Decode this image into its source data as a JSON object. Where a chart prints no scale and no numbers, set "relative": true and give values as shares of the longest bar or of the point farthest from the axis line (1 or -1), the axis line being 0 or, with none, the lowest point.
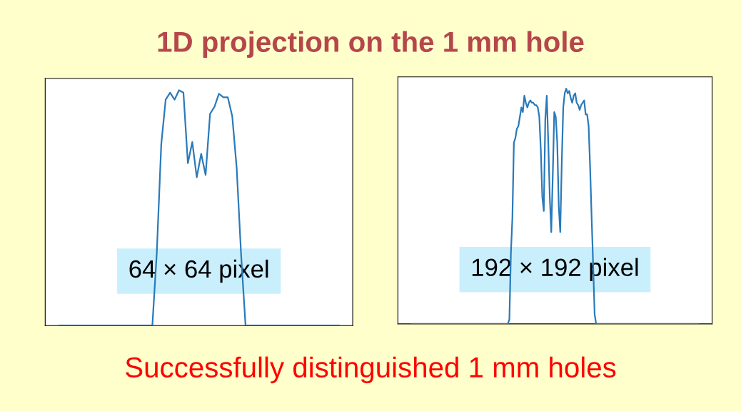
{
  "chart_data": [
    {
      "type": "line",
      "title": "1D projection on the 1 mm hole",
      "relative": true,
      "annotations": [
        "64 × 64 pixel"
      ],
      "categories": [
        null,
        null,
        null,
        null,
        null,
        null,
        null,
        null,
        null,
        null,
        null,
        null,
        null,
        null,
        null,
        null,
        null,
        null,
        null,
        null,
        null,
        null,
        null,
        null,
        null,
        null,
        null,
        null,
        null,
        null,
        null,
        null,
        null,
        null,
        null,
        null,
        null,
        null,
        null,
        null,
        null,
        null,
        null,
        null,
        null,
        null,
        null,
        null,
        null,
        null,
        null,
        null,
        null,
        null,
        null,
        null,
        null,
        null,
        null,
        null,
        null,
        null,
        null,
        null
      ],
      "series": [
        {
          "color": "#2a7ab9",
          "values": [
            0,
            0,
            0,
            0,
            0,
            0,
            0,
            0,
            0,
            0,
            0,
            0,
            0,
            0,
            0,
            0,
            0,
            0,
            0,
            0,
            0,
            0,
            0.31,
            0.77,
            0.96,
            0.99,
            0.96,
            1.0,
            0.99,
            0.69,
            0.78,
            0.63,
            0.73,
            0.64,
            0.9,
            0.93,
            0.985,
            0.97,
            0.97,
            0.89,
            0.67,
            0.3,
            0,
            0,
            0,
            0,
            0,
            0,
            0,
            0,
            0,
            0,
            0,
            0,
            0,
            0,
            0,
            0,
            0,
            0,
            0,
            0,
            0,
            0
          ]
        }
      ]
    },
    {
      "type": "line",
      "relative": true,
      "annotations": [
        "192 × 192 pixel",
        "Successfully distinguished 1 mm holes"
      ],
      "categories": [
        null,
        null,
        null,
        null,
        null,
        null,
        null,
        null,
        null,
        null,
        null,
        null,
        null,
        null,
        null,
        null,
        null,
        null,
        null,
        null,
        null,
        null,
        null,
        null,
        null,
        null,
        null,
        null,
        null,
        null,
        null,
        null,
        null,
        null,
        null,
        null,
        null,
        null,
        null,
        null,
        null,
        null,
        null,
        null,
        null,
        null,
        null,
        null,
        null,
        null,
        null,
        null,
        null,
        null,
        null,
        null,
        null,
        null,
        null,
        null,
        null,
        null,
        null,
        null,
        null,
        null,
        null,
        null,
        null,
        null,
        null,
        null,
        null,
        null,
        null,
        null,
        null,
        null,
        null,
        null,
        null,
        null,
        null,
        null,
        null,
        null,
        null,
        null,
        null,
        null,
        null,
        null,
        null,
        null,
        null,
        null,
        null,
        null,
        null,
        null,
        null,
        null,
        null,
        null,
        null,
        null,
        null,
        null,
        null,
        null,
        null,
        null,
        null,
        null,
        null,
        null,
        null,
        null,
        null,
        null,
        null,
        null,
        null,
        null,
        null,
        null,
        null,
        null,
        null,
        null,
        null,
        null,
        null,
        null,
        null,
        null,
        null,
        null,
        null,
        null,
        null,
        null,
        null,
        null,
        null,
        null,
        null,
        null,
        null,
        null,
        null,
        null,
        null,
        null,
        null,
        null,
        null,
        null,
        null,
        null,
        null,
        null,
        null,
        null,
        null,
        null,
        null,
        null,
        null,
        null,
        null,
        null,
        null,
        null,
        null,
        null,
        null,
        null,
        null,
        null,
        null,
        null,
        null,
        null,
        null,
        null,
        null,
        null,
        null,
        null,
        null,
        null
      ],
      "series": [
        {
          "color": "#2a7ab9",
          "values": [
            0,
            0,
            0,
            0,
            0,
            0,
            0,
            0,
            0,
            0,
            0,
            0,
            0,
            0,
            0,
            0,
            0,
            0,
            0,
            0,
            0,
            0,
            0,
            0,
            0,
            0,
            0,
            0,
            0,
            0,
            0,
            0,
            0,
            0,
            0,
            0,
            0,
            0,
            0,
            0,
            0,
            0,
            0,
            0,
            0,
            0,
            0,
            0,
            0,
            0,
            0,
            0,
            0,
            0,
            0,
            0,
            0,
            0,
            0,
            0,
            0,
            0,
            0,
            0,
            0,
            0.02,
            0.3,
            0.45,
            0.77,
            0.79,
            0.83,
            0.84,
            0.88,
            0.92,
            0.9,
            0.97,
            0.94,
            0.92,
            0.94,
            0.95,
            0.94,
            0.94,
            0.93,
            0.93,
            0.92,
            0.88,
            0.74,
            0.54,
            0.48,
            0.87,
            0.97,
            0.77,
            0.54,
            0.39,
            0.63,
            0.9,
            0.88,
            0.77,
            0.5,
            0.39,
            0.68,
            0.92,
            0.98,
            1.0,
            0.98,
            0.99,
            0.96,
            0.94,
            0.97,
            0.98,
            0.94,
            0.93,
            0.91,
            0.93,
            0.94,
            0.95,
            0.89,
            0.89,
            0.84,
            0.66,
            0.45,
            0.25,
            0.04,
            0,
            0,
            0,
            0,
            0,
            0,
            0,
            0,
            0,
            0,
            0,
            0,
            0,
            0,
            0,
            0,
            0,
            0,
            0,
            0,
            0,
            0,
            0,
            0,
            0,
            0,
            0,
            0,
            0,
            0,
            0,
            0,
            0,
            0,
            0,
            0,
            0,
            0,
            0,
            0,
            0,
            0,
            0,
            0,
            0,
            0,
            0,
            0,
            0,
            0,
            0,
            0,
            0,
            0,
            0,
            0,
            0,
            0,
            0,
            0,
            0,
            0,
            0,
            0,
            0,
            0,
            0,
            0,
            0
          ]
        }
      ]
    }
  ]
}
